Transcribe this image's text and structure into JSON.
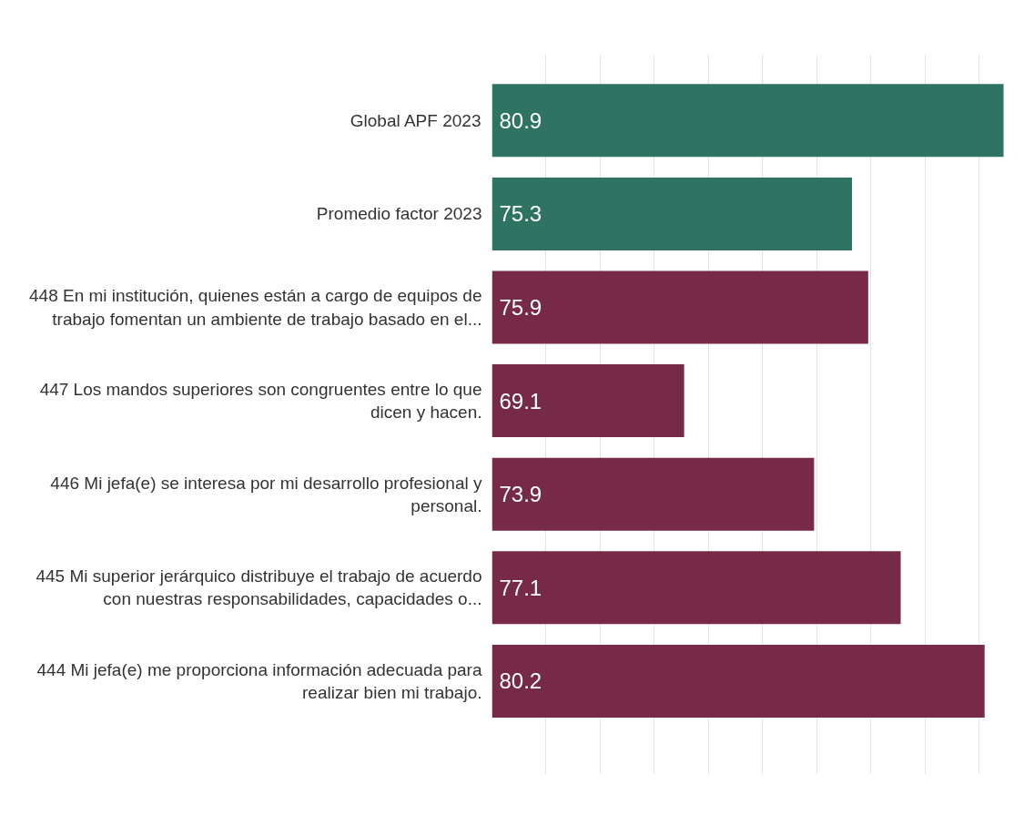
{
  "chart_data": {
    "type": "bar",
    "orientation": "horizontal",
    "categories": [
      "Global APF 2023",
      "Promedio factor 2023",
      "448 En mi institución, quienes están a cargo de equipos de\ntrabajo fomentan un ambiente de trabajo basado en el...",
      "447 Los mandos superiores son congruentes entre lo que\ndicen y hacen.",
      "446 Mi jefa(e) se interesa por mi desarrollo profesional y\npersonal.",
      "445 Mi superior jerárquico distribuye el trabajo de acuerdo\ncon nuestras responsabilidades, capacidades o...",
      "444 Mi jefa(e) me proporciona información adecuada para\nrealizar bien mi trabajo."
    ],
    "values": [
      80.9,
      75.3,
      75.9,
      69.1,
      73.9,
      77.1,
      80.2
    ],
    "colors": [
      "#2f7462",
      "#2f7462",
      "#772a47",
      "#772a47",
      "#772a47",
      "#772a47",
      "#772a47"
    ],
    "xlim": [
      62,
      81
    ],
    "xticks": [
      {
        "value": 64,
        "label": null
      },
      {
        "value": 66,
        "label": null
      },
      {
        "value": 68,
        "label": null
      },
      {
        "value": 70,
        "label": null
      },
      {
        "value": 72,
        "label": null
      },
      {
        "value": 74,
        "label": null
      },
      {
        "value": 76,
        "label": null
      },
      {
        "value": 78,
        "label": null
      },
      {
        "value": 80,
        "label": null
      }
    ],
    "grid": "x",
    "tick_labels": "y",
    "data_labels": true
  }
}
